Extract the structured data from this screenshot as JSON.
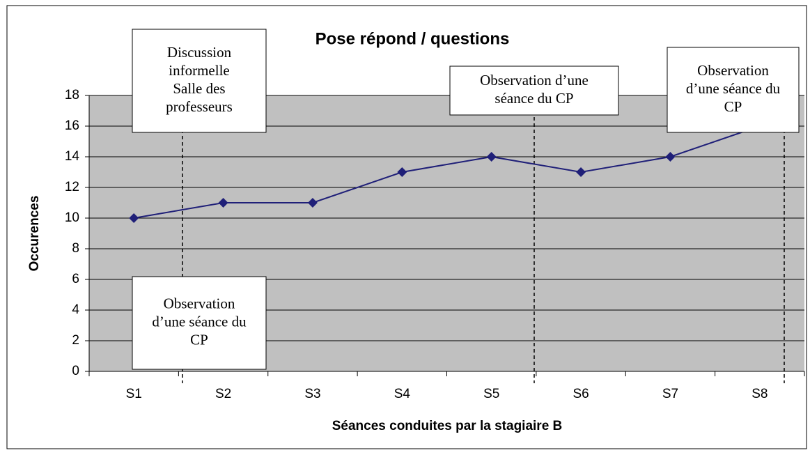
{
  "chart_data": {
    "type": "line",
    "title": "Pose répond / questions",
    "x_label": "Séances conduites par la stagiaire B",
    "y_label": "Occurences",
    "categories": [
      "S1",
      "S2",
      "S3",
      "S4",
      "S5",
      "S6",
      "S7",
      "S8"
    ],
    "series": [
      {
        "color": "#1f1f78",
        "values": [
          10,
          11,
          11,
          13,
          14,
          13,
          14,
          16
        ]
      }
    ],
    "ylim": [
      0,
      18
    ],
    "yticks": [
      0,
      2,
      4,
      6,
      8,
      10,
      12,
      14,
      16,
      18
    ],
    "grid": true,
    "annotations": [
      {
        "lines": [
          "Discussion",
          "informelle",
          "Salle des",
          "professeurs"
        ]
      },
      {
        "lines": [
          "Observation",
          "d’une séance du",
          "CP"
        ]
      },
      {
        "lines": [
          "Observation d’une",
          "séance du CP"
        ]
      },
      {
        "lines": [
          "Observation",
          "d’une séance du",
          "CP"
        ]
      }
    ]
  }
}
